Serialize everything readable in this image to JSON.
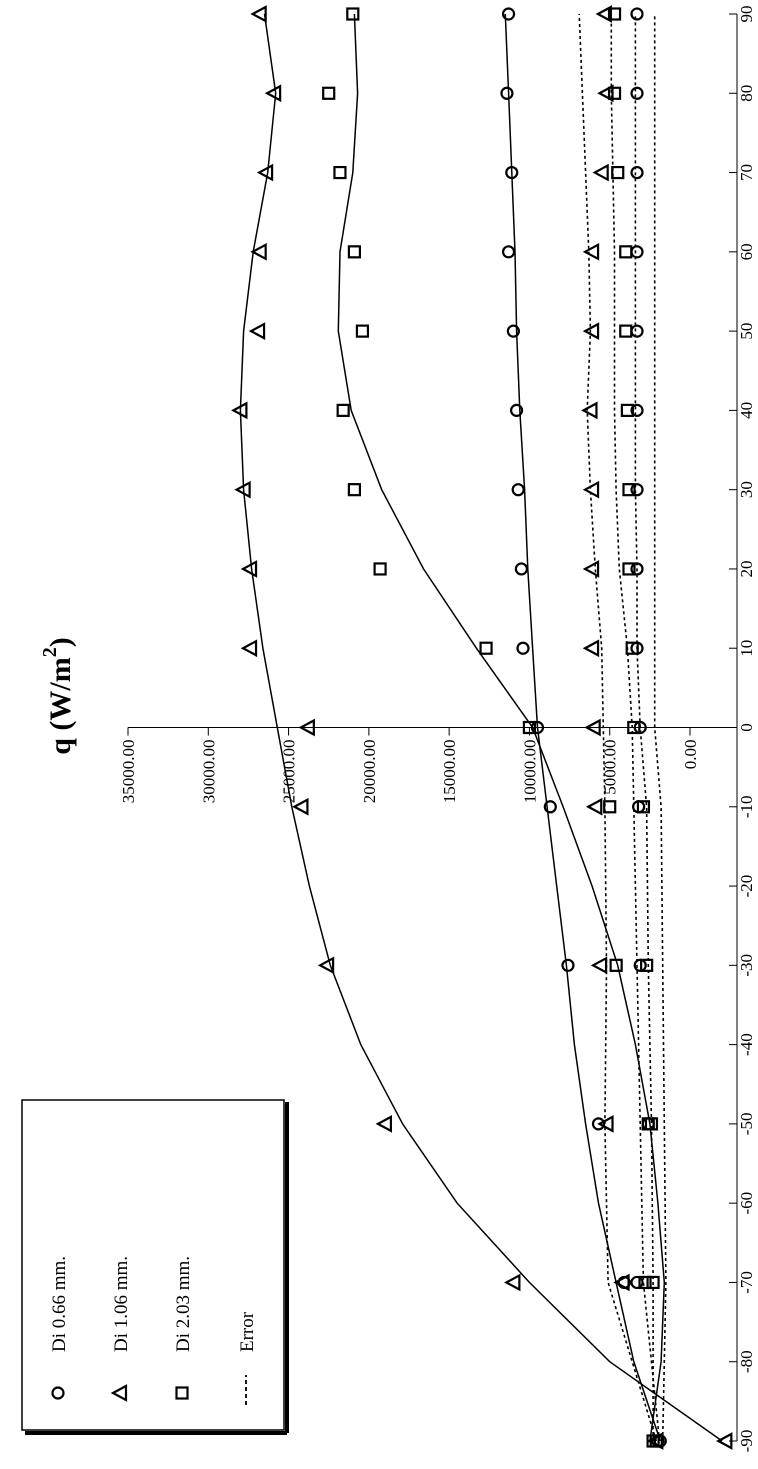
{
  "chart_data": {
    "type": "scatter",
    "title": "",
    "ylabel": "q (W/m",
    "ylabel_sup": "2",
    "ylabel_tail": ")",
    "xlabel": "",
    "xlim": [
      -90,
      90
    ],
    "ylim": [
      0,
      35000
    ],
    "x_ticks": [
      -90,
      -80,
      -70,
      -60,
      -50,
      -40,
      -30,
      -20,
      -10,
      0,
      10,
      20,
      30,
      40,
      50,
      60,
      70,
      80,
      90
    ],
    "x_tick_labels": [
      "-90",
      "-80",
      "-70",
      "-60",
      "-50",
      "-40",
      "-30",
      "-20",
      "-10",
      "0",
      "10",
      "20",
      "30",
      "40",
      "50",
      "60",
      "70",
      "80",
      "90"
    ],
    "y_ticks": [
      0,
      5000,
      10000,
      15000,
      20000,
      25000,
      30000,
      35000
    ],
    "y_tick_labels": [
      "0.00",
      "5000.00",
      "10000.00",
      "15000.00",
      "20000.00",
      "25000.00",
      "30000.00",
      "35000.00"
    ],
    "grid": false,
    "legend_position": "left, near x = -90",
    "orientation": "rotated 90 degrees clockwise (x axis runs top-to-bottom on the page)",
    "series": [
      {
        "name": "Di 0.66 mm.",
        "marker": "circle",
        "points": [
          [
            -90,
            1850
          ],
          [
            -70,
            4100
          ],
          [
            -50,
            5700
          ],
          [
            -30,
            7600
          ],
          [
            -10,
            8700
          ],
          [
            0,
            9500
          ],
          [
            10,
            10400
          ],
          [
            20,
            10500
          ],
          [
            30,
            10700
          ],
          [
            40,
            10800
          ],
          [
            50,
            11000
          ],
          [
            60,
            11300
          ],
          [
            70,
            11100
          ],
          [
            80,
            11400
          ],
          [
            90,
            11300
          ]
        ],
        "fit": [
          [
            -90,
            1850
          ],
          [
            -80,
            3500
          ],
          [
            -70,
            4600
          ],
          [
            -60,
            5700
          ],
          [
            -50,
            6500
          ],
          [
            -40,
            7200
          ],
          [
            -30,
            7700
          ],
          [
            -20,
            8300
          ],
          [
            -10,
            8900
          ],
          [
            0,
            9500
          ],
          [
            10,
            9800
          ],
          [
            20,
            10100
          ],
          [
            30,
            10300
          ],
          [
            40,
            10600
          ],
          [
            50,
            10800
          ],
          [
            60,
            10900
          ],
          [
            70,
            11100
          ],
          [
            80,
            11300
          ],
          [
            90,
            11500
          ]
        ]
      },
      {
        "name": "Di 1.06 mm.",
        "marker": "triangle",
        "points": [
          [
            -90,
            -2200
          ],
          [
            -70,
            11000
          ],
          [
            -50,
            19000
          ],
          [
            -30,
            22600
          ],
          [
            -10,
            24200
          ],
          [
            0,
            23800
          ],
          [
            10,
            27400
          ],
          [
            20,
            27400
          ],
          [
            30,
            27800
          ],
          [
            40,
            28000
          ],
          [
            50,
            26900
          ],
          [
            60,
            26800
          ],
          [
            70,
            26400
          ],
          [
            80,
            25900
          ],
          [
            90,
            26800
          ]
        ],
        "fit": [
          [
            -90,
            -2000
          ],
          [
            -80,
            5000
          ],
          [
            -70,
            10000
          ],
          [
            -60,
            14500
          ],
          [
            -50,
            17900
          ],
          [
            -40,
            20500
          ],
          [
            -30,
            22400
          ],
          [
            -20,
            23700
          ],
          [
            -10,
            24800
          ],
          [
            0,
            25700
          ],
          [
            10,
            26600
          ],
          [
            20,
            27300
          ],
          [
            30,
            27800
          ],
          [
            40,
            28000
          ],
          [
            50,
            27800
          ],
          [
            60,
            27200
          ],
          [
            70,
            26300
          ],
          [
            80,
            25800
          ],
          [
            90,
            26500
          ]
        ]
      },
      {
        "name": "Di 2.03 mm.",
        "marker": "square",
        "points": [
          [
            -90,
            2100
          ],
          [
            -70,
            2800
          ],
          [
            -50,
            2600
          ],
          [
            -30,
            2700
          ],
          [
            -10,
            2900
          ],
          [
            0,
            10000
          ],
          [
            10,
            12700
          ],
          [
            20,
            19300
          ],
          [
            30,
            20900
          ],
          [
            40,
            21600
          ],
          [
            50,
            20400
          ],
          [
            60,
            20900
          ],
          [
            70,
            21800
          ],
          [
            80,
            22500
          ],
          [
            90,
            21000
          ]
        ],
        "fit": [
          [
            -90,
            2500
          ],
          [
            -80,
            1800
          ],
          [
            -70,
            1600
          ],
          [
            -60,
            2000
          ],
          [
            -50,
            2500
          ],
          [
            -40,
            3400
          ],
          [
            -30,
            4500
          ],
          [
            -20,
            6100
          ],
          [
            -10,
            7900
          ],
          [
            0,
            9800
          ],
          [
            10,
            13300
          ],
          [
            20,
            16600
          ],
          [
            30,
            19200
          ],
          [
            40,
            21100
          ],
          [
            50,
            21900
          ],
          [
            60,
            21800
          ],
          [
            70,
            21000
          ],
          [
            80,
            20700
          ],
          [
            90,
            20900
          ]
        ]
      },
      {
        "name": "Error",
        "marker": "none",
        "dashed_lines": [
          {
            "points": [
              [
                -90,
                2100
              ],
              [
                -70,
                5100
              ],
              [
                -50,
                5300
              ],
              [
                -30,
                5200
              ],
              [
                -10,
                5300
              ],
              [
                0,
                5400
              ],
              [
                10,
                5500
              ],
              [
                20,
                5900
              ],
              [
                30,
                6200
              ],
              [
                40,
                6400
              ],
              [
                50,
                6200
              ],
              [
                60,
                6300
              ],
              [
                70,
                6500
              ],
              [
                80,
                6700
              ],
              [
                90,
                6900
              ]
            ]
          },
          {
            "points": [
              [
                -90,
                1900
              ],
              [
                -70,
                2900
              ],
              [
                -50,
                3100
              ],
              [
                -30,
                3300
              ],
              [
                -10,
                3500
              ],
              [
                0,
                3600
              ],
              [
                10,
                3900
              ],
              [
                20,
                4400
              ],
              [
                30,
                4600
              ],
              [
                40,
                4700
              ],
              [
                50,
                4700
              ],
              [
                60,
                4700
              ],
              [
                70,
                4800
              ],
              [
                80,
                4900
              ],
              [
                90,
                4900
              ]
            ]
          },
          {
            "points": [
              [
                -90,
                2300
              ],
              [
                -70,
                2300
              ],
              [
                -50,
                2400
              ],
              [
                -30,
                2600
              ],
              [
                -10,
                2700
              ],
              [
                0,
                3100
              ],
              [
                10,
                3300
              ],
              [
                20,
                3300
              ],
              [
                30,
                3400
              ],
              [
                40,
                3400
              ],
              [
                50,
                3400
              ],
              [
                60,
                3400
              ],
              [
                70,
                3400
              ],
              [
                80,
                3400
              ],
              [
                90,
                3400
              ]
            ]
          },
          {
            "points": [
              [
                -90,
                1700
              ],
              [
                -70,
                1500
              ],
              [
                -50,
                1600
              ],
              [
                -30,
                1700
              ],
              [
                -10,
                1800
              ],
              [
                0,
                2200
              ],
              [
                10,
                2200
              ],
              [
                20,
                2200
              ],
              [
                30,
                2200
              ],
              [
                40,
                2200
              ],
              [
                50,
                2200
              ],
              [
                60,
                2200
              ],
              [
                70,
                2200
              ],
              [
                80,
                2200
              ],
              [
                90,
                2200
              ]
            ]
          }
        ],
        "circle_markers": [
          [
            -70,
            3300
          ],
          [
            -30,
            3100
          ],
          [
            -10,
            3200
          ],
          [
            0,
            3100
          ],
          [
            10,
            3300
          ],
          [
            20,
            3300
          ],
          [
            30,
            3300
          ],
          [
            40,
            3300
          ],
          [
            50,
            3300
          ],
          [
            60,
            3300
          ],
          [
            70,
            3300
          ],
          [
            80,
            3300
          ],
          [
            90,
            3300
          ],
          [
            -90,
            2000
          ],
          [
            -50,
            2600
          ]
        ],
        "triangle_markers": [
          [
            -90,
            2100
          ],
          [
            -70,
            4200
          ],
          [
            -50,
            5200
          ],
          [
            -30,
            5600
          ],
          [
            -10,
            5900
          ],
          [
            0,
            6000
          ],
          [
            10,
            6100
          ],
          [
            20,
            6100
          ],
          [
            30,
            6100
          ],
          [
            40,
            6200
          ],
          [
            50,
            6100
          ],
          [
            60,
            6100
          ],
          [
            70,
            5500
          ],
          [
            80,
            5200
          ],
          [
            90,
            5300
          ]
        ],
        "square_markers": [
          [
            -90,
            2300
          ],
          [
            -70,
            2300
          ],
          [
            -50,
            2400
          ],
          [
            -30,
            4600
          ],
          [
            -10,
            5000
          ],
          [
            0,
            3500
          ],
          [
            10,
            3600
          ],
          [
            20,
            3800
          ],
          [
            30,
            3800
          ],
          [
            40,
            3900
          ],
          [
            50,
            4000
          ],
          [
            60,
            4000
          ],
          [
            70,
            4500
          ],
          [
            80,
            4700
          ],
          [
            90,
            4700
          ]
        ]
      }
    ]
  },
  "legend": {
    "items": [
      {
        "label": "Di 0.66 mm.",
        "marker": "circle"
      },
      {
        "label": "Di 1.06 mm.",
        "marker": "triangle"
      },
      {
        "label": "Di 2.03 mm.",
        "marker": "square"
      },
      {
        "label": "Error",
        "marker": "dashed"
      }
    ]
  }
}
